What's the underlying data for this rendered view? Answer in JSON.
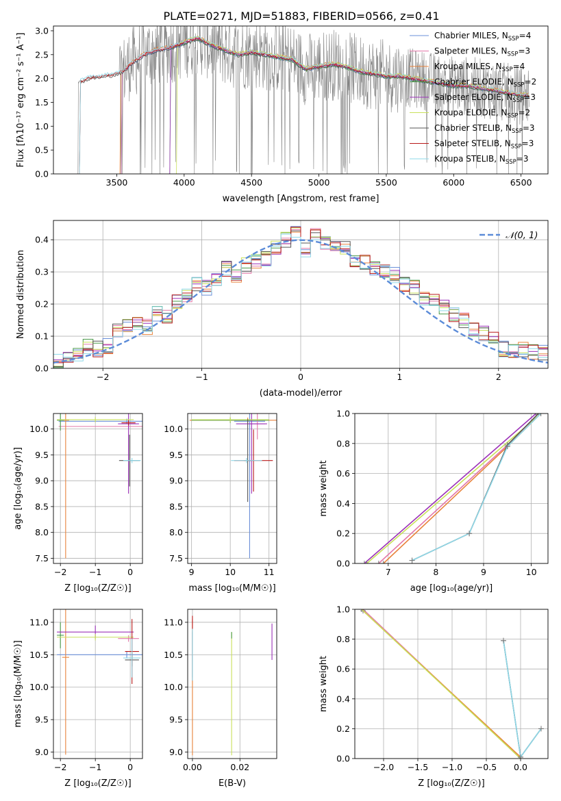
{
  "figure_title": "PLATE=0271, MJD=51883, FIBERID=0566, z=0.41",
  "colors": {
    "Chabrier MILES": "#6a8fd8",
    "Salpeter MILES": "#e377a8",
    "Kroupa MILES": "#e8823a",
    "Chabrier ELODIE": "#4a9a4a",
    "Salpeter ELODIE": "#9b30b8",
    "Kroupa ELODIE": "#c8e05a",
    "Chabrier STELIB": "#555555",
    "Salpeter STELIB": "#b81818",
    "Kroupa STELIB": "#8ed8e8",
    "data": "#808080",
    "normal": "#5b8bd8"
  },
  "chart_data": [
    {
      "id": "spectrum",
      "type": "line",
      "title": "PLATE=0271, MJD=51883, FIBERID=0566, z=0.41",
      "xlabel": "wavelength [Angstrom, rest frame]",
      "ylabel": "Flux [fλ10⁻¹⁷ erg cm⁻² s⁻¹ A⁻¹]",
      "xlim": [
        3030,
        6700
      ],
      "ylim": [
        0,
        3.1
      ],
      "xticks": [
        3500,
        4000,
        4500,
        5000,
        5500,
        6000,
        6500
      ],
      "yticks": [
        0.0,
        0.5,
        1.0,
        1.5,
        2.0,
        2.5,
        3.0
      ],
      "legend_position": "upper right",
      "legend": [
        {
          "name": "Chabrier MILES",
          "label_main": "Chabrier MILES, N",
          "label_sub": "SSP",
          "label_tail": "=4"
        },
        {
          "name": "Salpeter MILES",
          "label_main": "Salpeter MILES, N",
          "label_sub": "SSP",
          "label_tail": "=3"
        },
        {
          "name": "Kroupa MILES",
          "label_main": "Kroupa MILES, N",
          "label_sub": "SSP",
          "label_tail": "=4"
        },
        {
          "name": "Chabrier ELODIE",
          "label_main": "Chabrier ELODIE, N",
          "label_sub": "SSP",
          "label_tail": "=2"
        },
        {
          "name": "Salpeter ELODIE",
          "label_main": "Salpeter ELODIE, N",
          "label_sub": "SSP",
          "label_tail": "=3"
        },
        {
          "name": "Kroupa ELODIE",
          "label_main": "Kroupa ELODIE, N",
          "label_sub": "SSP",
          "label_tail": "=2"
        },
        {
          "name": "Chabrier STELIB",
          "label_main": "Chabrier STELIB, N",
          "label_sub": "SSP",
          "label_tail": "=3"
        },
        {
          "name": "Salpeter STELIB",
          "label_main": "Salpeter STELIB, N",
          "label_sub": "SSP",
          "label_tail": "=3"
        },
        {
          "name": "Kroupa STELIB",
          "label_main": "Kroupa STELIB, N",
          "label_sub": "SSP",
          "label_tail": "=3"
        }
      ],
      "model_continuum": {
        "x": [
          3200,
          3300,
          3400,
          3500,
          3550,
          3600,
          3700,
          3800,
          3900,
          4000,
          4100,
          4200,
          4300,
          4400,
          4500,
          4600,
          4700,
          4800,
          4900,
          5000,
          5100,
          5200,
          5300,
          5400,
          5500,
          5600,
          5700,
          5800,
          5900,
          6000,
          6100,
          6200,
          6300,
          6400,
          6500
        ],
        "y": [
          1.9,
          2.02,
          2.05,
          2.1,
          2.15,
          2.3,
          2.5,
          2.6,
          2.65,
          2.75,
          2.85,
          2.7,
          2.6,
          2.5,
          2.55,
          2.5,
          2.45,
          2.4,
          2.2,
          2.25,
          2.3,
          2.25,
          2.15,
          2.1,
          2.05,
          2.05,
          2.0,
          1.95,
          1.9,
          1.85,
          1.85,
          1.8,
          1.75,
          1.7,
          1.65
        ]
      },
      "model_start": [
        {
          "name": "Chabrier MILES",
          "x0": 3540
        },
        {
          "name": "Salpeter MILES",
          "x0": 3540
        },
        {
          "name": "Kroupa MILES",
          "x0": 3530
        },
        {
          "name": "Chabrier ELODIE",
          "x0": 3900
        },
        {
          "name": "Salpeter ELODIE",
          "x0": 3900
        },
        {
          "name": "Kroupa ELODIE",
          "x0": 3950
        },
        {
          "name": "Chabrier STELIB",
          "x0": 3230
        },
        {
          "name": "Salpeter STELIB",
          "x0": 3230
        },
        {
          "name": "Kroupa STELIB",
          "x0": 3230
        }
      ]
    },
    {
      "id": "residuals",
      "type": "step",
      "xlabel": "(data-model)/error",
      "ylabel": "Normed distribution",
      "xlim": [
        -2.5,
        2.5
      ],
      "ylim": [
        0,
        0.46
      ],
      "xticks": [
        -2,
        -1,
        0,
        1,
        2
      ],
      "yticks": [
        0.0,
        0.1,
        0.2,
        0.3,
        0.4
      ],
      "grid": true,
      "legend_position": "upper right",
      "reference": {
        "name": "𝒩(0, 1)",
        "mean": 0,
        "sigma": 1
      },
      "bin_edges_start": -2.5,
      "bin_width": 0.1,
      "base_hist": [
        0.02,
        0.03,
        0.04,
        0.07,
        0.06,
        0.07,
        0.12,
        0.13,
        0.14,
        0.13,
        0.17,
        0.16,
        0.21,
        0.23,
        0.26,
        0.25,
        0.28,
        0.31,
        0.29,
        0.32,
        0.33,
        0.34,
        0.38,
        0.4,
        0.42,
        0.37,
        0.41,
        0.39,
        0.38,
        0.37,
        0.34,
        0.33,
        0.31,
        0.3,
        0.29,
        0.26,
        0.25,
        0.22,
        0.21,
        0.19,
        0.17,
        0.15,
        0.12,
        0.11,
        0.09,
        0.06,
        0.05,
        0.06,
        0.05,
        0.05
      ]
    },
    {
      "id": "age-vs-Z",
      "type": "errorbar",
      "xlabel": "Z [log₁₀(Z/Z☉)]",
      "ylabel": "age  [log₁₀(age/yr)]",
      "xlim": [
        -2.2,
        0.35
      ],
      "ylim": [
        7.4,
        10.3
      ],
      "xticks": [
        -2,
        -1,
        0
      ],
      "yticks": [
        7.5,
        8.0,
        8.5,
        9.0,
        9.5,
        10.0
      ],
      "grid": true,
      "points": [
        {
          "name": "Chabrier MILES",
          "x": -0.1,
          "y": 10.15,
          "xerr": 1.95,
          "yerr": 0.05
        },
        {
          "name": "Salpeter MILES",
          "x": -0.05,
          "y": 10.05,
          "xerr": 2.0,
          "yerr": 0.05
        },
        {
          "name": "Kroupa MILES",
          "x": -1.85,
          "y": 10.17,
          "xerr": 0.1,
          "yerr": 2.67
        },
        {
          "name": "Chabrier ELODIE",
          "x": -2.0,
          "y": 10.17,
          "xerr": 0.1,
          "yerr": 0.2
        },
        {
          "name": "Salpeter ELODIE",
          "x": -0.05,
          "y": 10.1,
          "xerr": 0.3,
          "yerr": 1.35
        },
        {
          "name": "Kroupa ELODIE",
          "x": -1.0,
          "y": 10.18,
          "xerr": 1.1,
          "yerr": 0.05
        },
        {
          "name": "Chabrier STELIB",
          "x": -0.02,
          "y": 9.39,
          "xerr": 0.3,
          "yerr": 0.5
        },
        {
          "name": "Salpeter STELIB",
          "x": -0.05,
          "y": 10.12,
          "xerr": 0.2,
          "yerr": 0.05
        },
        {
          "name": "Kroupa STELIB",
          "x": 0.05,
          "y": 9.39,
          "xerr": 0.25,
          "yerr": 0.05
        }
      ]
    },
    {
      "id": "age-vs-mass",
      "type": "errorbar",
      "xlabel": "mass [log₁₀(M/M☉)]",
      "xlim": [
        8.9,
        11.2
      ],
      "ylim": [
        7.4,
        10.3
      ],
      "xticks": [
        9,
        10,
        11
      ],
      "yticks": [
        7.5,
        8.0,
        8.5,
        9.0,
        9.5,
        10.0
      ],
      "grid": true,
      "points": [
        {
          "name": "Chabrier MILES",
          "x": 10.5,
          "y": 10.15,
          "xerr": 0.4,
          "yerr": 2.65
        },
        {
          "name": "Salpeter MILES",
          "x": 10.7,
          "y": 10.1,
          "xerr": 0.2,
          "yerr": 0.3
        },
        {
          "name": "Kroupa MILES",
          "x": 10.45,
          "y": 10.17,
          "xerr": 1.5,
          "yerr": 0.05
        },
        {
          "name": "Chabrier ELODIE",
          "x": 10.0,
          "y": 10.17,
          "xerr": 1.0,
          "yerr": 0.05
        },
        {
          "name": "Salpeter ELODIE",
          "x": 10.55,
          "y": 10.1,
          "xerr": 0.4,
          "yerr": 1.35
        },
        {
          "name": "Kroupa ELODIE",
          "x": 10.0,
          "y": 10.18,
          "xerr": 1.0,
          "yerr": 0.05
        },
        {
          "name": "Chabrier STELIB",
          "x": 10.45,
          "y": 9.39,
          "xerr": 0.1,
          "yerr": 0.8
        },
        {
          "name": "Salpeter STELIB",
          "x": 10.6,
          "y": 9.39,
          "xerr": 0.5,
          "yerr": 0.6
        },
        {
          "name": "Kroupa STELIB",
          "x": 10.42,
          "y": 9.39,
          "xerr": 0.4,
          "yerr": 0.05
        }
      ]
    },
    {
      "id": "massweight-vs-age",
      "type": "line",
      "xlabel": "age  [log₁₀(age/yr)]",
      "ylabel": "mass weight",
      "xlim": [
        6.3,
        10.35
      ],
      "ylim": [
        0,
        1
      ],
      "xticks": [
        7,
        8,
        9,
        10
      ],
      "yticks": [
        0.0,
        0.2,
        0.4,
        0.6,
        0.8,
        1.0
      ],
      "grid": true,
      "series": [
        {
          "name": "Salpeter ELODIE",
          "x": [
            6.5,
            10.1
          ],
          "y": [
            0.0,
            1.0
          ]
        },
        {
          "name": "Kroupa ELODIE",
          "x": [
            6.55,
            10.2
          ],
          "y": [
            0.0,
            1.0
          ]
        },
        {
          "name": "Salpeter MILES",
          "x": [
            6.8,
            9.5,
            10.15
          ],
          "y": [
            0.0,
            0.79,
            1.0
          ]
        },
        {
          "name": "Kroupa MILES",
          "x": [
            6.9,
            9.5,
            10.2
          ],
          "y": [
            0.0,
            0.78,
            1.0
          ]
        },
        {
          "name": "Chabrier STELIB",
          "x": [
            7.5,
            8.7,
            9.5,
            10.15
          ],
          "y": [
            0.02,
            0.2,
            0.79,
            1.0
          ]
        },
        {
          "name": "Kroupa STELIB",
          "x": [
            7.5,
            8.7,
            9.5,
            10.2
          ],
          "y": [
            0.02,
            0.2,
            0.78,
            1.0
          ]
        }
      ]
    },
    {
      "id": "mass-vs-Z",
      "type": "errorbar",
      "xlabel": "Z [log₁₀(Z/Z☉)]",
      "ylabel": "mass [log₁₀(M/M☉)]",
      "xlim": [
        -2.2,
        0.35
      ],
      "ylim": [
        8.9,
        11.2
      ],
      "xticks": [
        -2,
        -1,
        0
      ],
      "yticks": [
        9.0,
        9.5,
        10.0,
        10.5,
        11.0
      ],
      "grid": true,
      "points": [
        {
          "name": "Chabrier MILES",
          "x": -0.1,
          "y": 10.5,
          "xerr": 2.0,
          "yerr": 0.05
        },
        {
          "name": "Salpeter MILES",
          "x": -0.05,
          "y": 10.75,
          "xerr": 0.3,
          "yerr": 0.05
        },
        {
          "name": "Kroupa MILES",
          "x": -1.85,
          "y": 10.46,
          "xerr": 0.1,
          "yerr": 1.5
        },
        {
          "name": "Chabrier ELODIE",
          "x": -2.0,
          "y": 10.8,
          "xerr": 0.1,
          "yerr": 0.2
        },
        {
          "name": "Salpeter ELODIE",
          "x": -1.0,
          "y": 10.85,
          "xerr": 1.1,
          "yerr": 0.1
        },
        {
          "name": "Kroupa ELODIE",
          "x": -1.0,
          "y": 10.77,
          "xerr": 1.1,
          "yerr": 0.05
        },
        {
          "name": "Chabrier STELIB",
          "x": 0.05,
          "y": 10.42,
          "xerr": 0.2,
          "yerr": 0.1
        },
        {
          "name": "Salpeter STELIB",
          "x": 0.05,
          "y": 10.55,
          "xerr": 0.2,
          "yerr": 0.5
        },
        {
          "name": "Kroupa STELIB",
          "x": 0.05,
          "y": 10.45,
          "xerr": 0.25,
          "yerr": 0.3
        }
      ]
    },
    {
      "id": "mass-vs-EBV",
      "type": "errorbar",
      "xlabel": "E(B-V)",
      "xlim": [
        -0.002,
        0.0355
      ],
      "ylim": [
        8.9,
        11.2
      ],
      "xticks": [
        0.0,
        0.02
      ],
      "yticks": [
        9.0,
        9.5,
        10.0,
        10.5,
        11.0
      ],
      "grid": true,
      "points": [
        {
          "name": "Chabrier MILES",
          "x": 0.0,
          "y": 10.5,
          "xerr": 0.0,
          "yerr": 0.35
        },
        {
          "name": "Kroupa MILES",
          "x": 0.0,
          "y": 10.0,
          "xerr": 0.0,
          "yerr": 1.05
        },
        {
          "name": "Salpeter STELIB",
          "x": 0.0,
          "y": 10.6,
          "xerr": 0.0,
          "yerr": 0.5
        },
        {
          "name": "Kroupa STELIB",
          "x": 0.0,
          "y": 10.5,
          "xerr": 0.0,
          "yerr": 0.4
        },
        {
          "name": "Kroupa ELODIE",
          "x": 0.0165,
          "y": 9.9,
          "xerr": 0.0,
          "yerr": 0.95
        },
        {
          "name": "Chabrier ELODIE",
          "x": 0.0165,
          "y": 10.8,
          "xerr": 0.0,
          "yerr": 0.05
        },
        {
          "name": "Salpeter ELODIE",
          "x": 0.0335,
          "y": 10.7,
          "xerr": 0.0,
          "yerr": 0.28
        }
      ]
    },
    {
      "id": "massweight-vs-Z",
      "type": "line",
      "xlabel": "Z [log₁₀(Z/Z☉)]",
      "ylabel": "mass weight",
      "xlim": [
        -2.42,
        0.4
      ],
      "ylim": [
        0,
        1
      ],
      "xticks": [
        -2.0,
        -1.5,
        -1.0,
        -0.5,
        0.0
      ],
      "yticks": [
        0.0,
        0.2,
        0.4,
        0.6,
        0.8,
        1.0
      ],
      "grid": true,
      "series": [
        {
          "name": "Salpeter MILES",
          "x": [
            -2.3,
            0.0
          ],
          "y": [
            1.0,
            0.0
          ]
        },
        {
          "name": "Kroupa MILES",
          "x": [
            -2.3,
            0.0
          ],
          "y": [
            0.99,
            0.01
          ]
        },
        {
          "name": "Kroupa ELODIE",
          "x": [
            -2.32,
            0.0
          ],
          "y": [
            1.0,
            0.0
          ]
        },
        {
          "name": "Chabrier STELIB",
          "x": [
            -0.25,
            0.0,
            0.3
          ],
          "y": [
            0.79,
            0.01,
            0.2
          ]
        },
        {
          "name": "Kroupa STELIB",
          "x": [
            -0.25,
            0.0,
            0.3
          ],
          "y": [
            0.79,
            0.01,
            0.2
          ]
        }
      ]
    }
  ]
}
